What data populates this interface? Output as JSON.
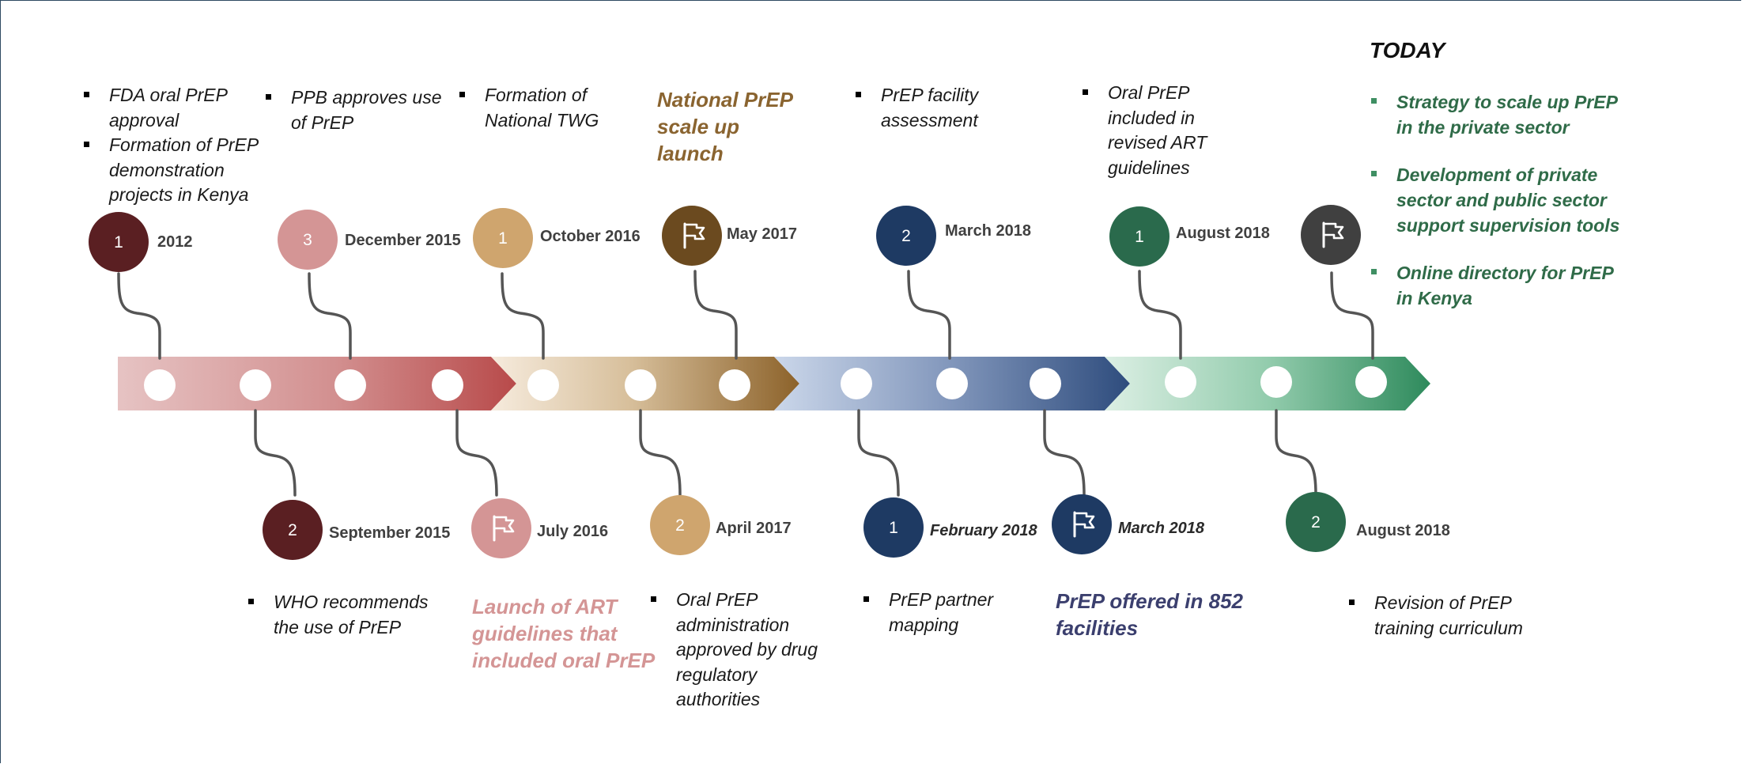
{
  "today_label": "TODAY",
  "milestones": [
    {
      "id": "m2012",
      "marker": "1",
      "date": "2012",
      "bullets": [
        "FDA oral PrEP approval",
        "Formation of PrEP demonstration projects in Kenya"
      ]
    },
    {
      "id": "sep2015",
      "marker": "2",
      "date": "September 2015",
      "bullets": [
        "WHO recommends the use of PrEP"
      ]
    },
    {
      "id": "dec2015",
      "marker": "3",
      "date": "December 2015",
      "bullets": [
        "PPB approves use of PrEP"
      ]
    },
    {
      "id": "jul2016",
      "marker": "flag",
      "date": "July 2016",
      "headline": "Launch of ART guidelines that included oral PrEP"
    },
    {
      "id": "oct2016",
      "marker": "1",
      "date": "October 2016",
      "bullets": [
        "Formation of National TWG"
      ]
    },
    {
      "id": "apr2017",
      "marker": "2",
      "date": "April 2017",
      "bullets": [
        "Oral PrEP administration approved by drug regulatory authorities"
      ]
    },
    {
      "id": "may2017",
      "marker": "flag",
      "date": "May 2017",
      "headline": "National PrEP scale up launch"
    },
    {
      "id": "feb2018",
      "marker": "1",
      "date": "February 2018",
      "bullets": [
        "PrEP partner mapping"
      ]
    },
    {
      "id": "mar2018a",
      "marker": "2",
      "date": "March 2018",
      "bullets": [
        "PrEP facility assessment"
      ]
    },
    {
      "id": "mar2018b",
      "marker": "flag",
      "date": "March 2018",
      "headline": "PrEP offered in 852 facilities"
    },
    {
      "id": "aug2018a",
      "marker": "1",
      "date": "August 2018",
      "bullets": [
        "Oral PrEP included in revised ART guidelines"
      ]
    },
    {
      "id": "aug2018b",
      "marker": "2",
      "date": "August 2018",
      "bullets": [
        "Revision of PrEP training curriculum"
      ]
    },
    {
      "id": "today",
      "marker": "flag",
      "date": "",
      "bullets": [
        "Strategy to scale up PrEP in the private sector",
        "Development of private sector and public sector support supervision  tools",
        "Online directory for PrEP in Kenya"
      ]
    }
  ],
  "colors": {
    "maroon": "#5a1f22",
    "pink": "#d49595",
    "tan": "#cfa56e",
    "brown": "#6b4a1f",
    "navy": "#1e3a63",
    "green": "#2a6a4c",
    "charcoal": "#404040",
    "headline_brown": "#8a6430",
    "headline_pink": "#d49595",
    "headline_navy": "#3b3f6e",
    "today_green": "#2f6b48"
  },
  "icons": {
    "flag": "flag-icon"
  }
}
